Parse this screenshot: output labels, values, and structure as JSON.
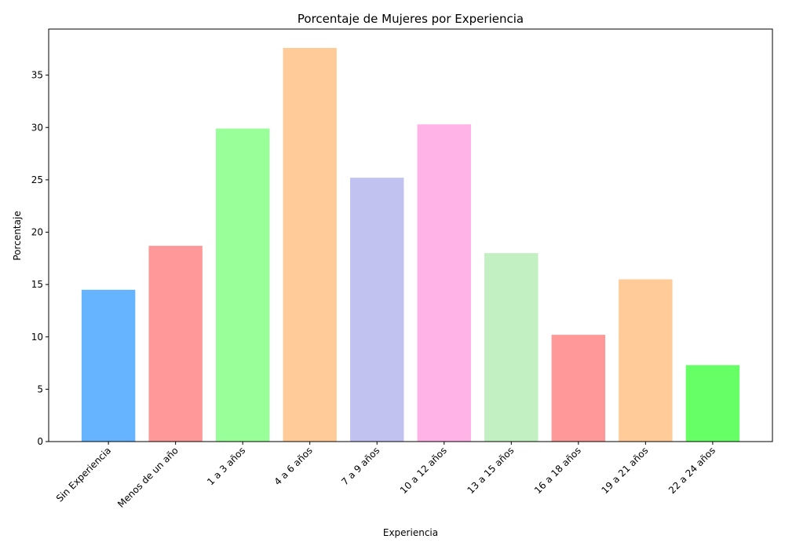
{
  "chart_data": {
    "type": "bar",
    "title": "Porcentaje de Mujeres por Experiencia",
    "xlabel": "Experiencia",
    "ylabel": "Porcentaje",
    "categories": [
      "Sin Experiencia",
      "Menos de un año",
      "1 a 3 años",
      "4 a 6 años",
      "7 a 9 años",
      "10 a 12 años",
      "13 a 15 años",
      "16 a 18 años",
      "19 a 21 años",
      "22 a 24 años"
    ],
    "values": [
      14.5,
      18.7,
      29.9,
      37.6,
      25.2,
      30.3,
      18.0,
      10.2,
      15.5,
      7.3
    ],
    "colors": [
      "#66b3ff",
      "#ff9999",
      "#99ff99",
      "#ffcc99",
      "#c2c2f0",
      "#ffb3e6",
      "#c2f0c2",
      "#ff9999",
      "#ffcc99",
      "#66ff66"
    ],
    "yticks": [
      0,
      5,
      10,
      15,
      20,
      25,
      30,
      35
    ],
    "ylim": [
      0,
      39.4
    ],
    "grid": false,
    "legend": "none"
  }
}
